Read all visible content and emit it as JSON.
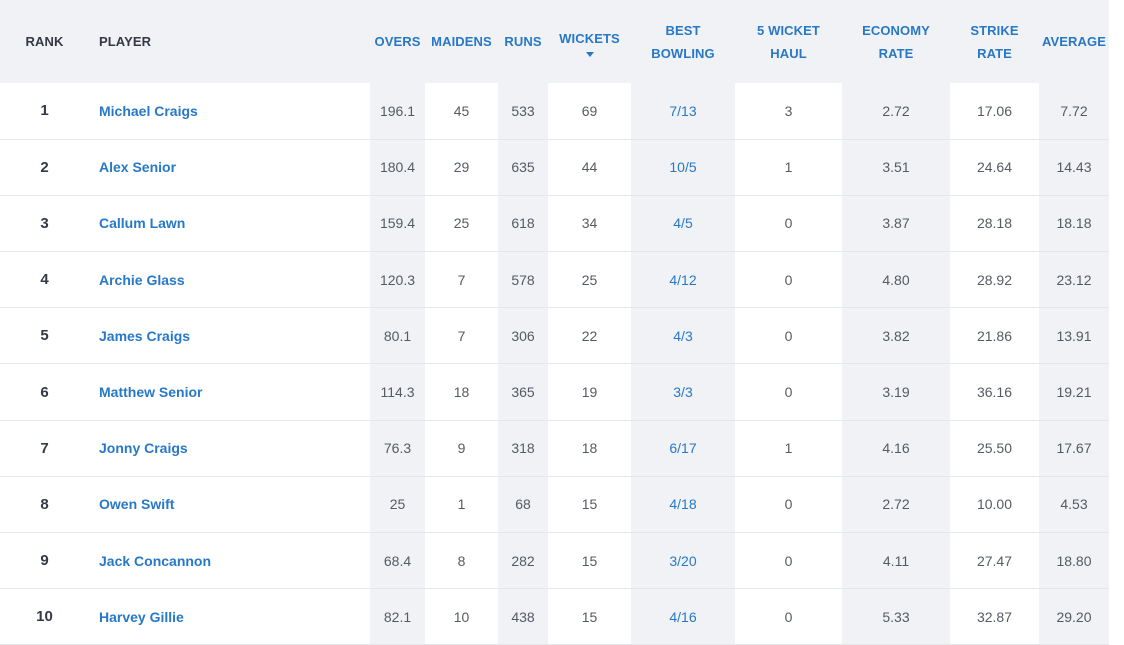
{
  "table": {
    "headers": {
      "rank": "RANK",
      "player": "PLAYER",
      "overs": "OVERS",
      "maidens": "MAIDENS",
      "runs": "RUNS",
      "wickets": "WICKETS",
      "best_line1": "BEST",
      "best_line2": "BOWLING",
      "fivew_line1": "5 WICKET",
      "fivew_line2": "HAUL",
      "econ_line1": "ECONOMY",
      "econ_line2": "RATE",
      "strike_line1": "STRIKE",
      "strike_line2": "RATE",
      "average": "AVERAGE"
    },
    "sort_icon": "caret-down-icon",
    "rows": [
      {
        "rank": "1",
        "player": "Michael Craigs",
        "overs": "196.1",
        "maidens": "45",
        "runs": "533",
        "wickets": "69",
        "best": "7/13",
        "fivew": "3",
        "econ": "2.72",
        "strike": "17.06",
        "avg": "7.72"
      },
      {
        "rank": "2",
        "player": "Alex Senior",
        "overs": "180.4",
        "maidens": "29",
        "runs": "635",
        "wickets": "44",
        "best": "10/5",
        "fivew": "1",
        "econ": "3.51",
        "strike": "24.64",
        "avg": "14.43"
      },
      {
        "rank": "3",
        "player": "Callum Lawn",
        "overs": "159.4",
        "maidens": "25",
        "runs": "618",
        "wickets": "34",
        "best": "4/5",
        "fivew": "0",
        "econ": "3.87",
        "strike": "28.18",
        "avg": "18.18"
      },
      {
        "rank": "4",
        "player": "Archie Glass",
        "overs": "120.3",
        "maidens": "7",
        "runs": "578",
        "wickets": "25",
        "best": "4/12",
        "fivew": "0",
        "econ": "4.80",
        "strike": "28.92",
        "avg": "23.12"
      },
      {
        "rank": "5",
        "player": "James Craigs",
        "overs": "80.1",
        "maidens": "7",
        "runs": "306",
        "wickets": "22",
        "best": "4/3",
        "fivew": "0",
        "econ": "3.82",
        "strike": "21.86",
        "avg": "13.91"
      },
      {
        "rank": "6",
        "player": "Matthew Senior",
        "overs": "114.3",
        "maidens": "18",
        "runs": "365",
        "wickets": "19",
        "best": "3/3",
        "fivew": "0",
        "econ": "3.19",
        "strike": "36.16",
        "avg": "19.21"
      },
      {
        "rank": "7",
        "player": "Jonny Craigs",
        "overs": "76.3",
        "maidens": "9",
        "runs": "318",
        "wickets": "18",
        "best": "6/17",
        "fivew": "1",
        "econ": "4.16",
        "strike": "25.50",
        "avg": "17.67"
      },
      {
        "rank": "8",
        "player": "Owen Swift",
        "overs": "25",
        "maidens": "1",
        "runs": "68",
        "wickets": "15",
        "best": "4/18",
        "fivew": "0",
        "econ": "2.72",
        "strike": "10.00",
        "avg": "4.53"
      },
      {
        "rank": "9",
        "player": "Jack Concannon",
        "overs": "68.4",
        "maidens": "8",
        "runs": "282",
        "wickets": "15",
        "best": "3/20",
        "fivew": "0",
        "econ": "4.11",
        "strike": "27.47",
        "avg": "18.80"
      },
      {
        "rank": "10",
        "player": "Harvey Gillie",
        "overs": "82.1",
        "maidens": "10",
        "runs": "438",
        "wickets": "15",
        "best": "4/16",
        "fivew": "0",
        "econ": "5.33",
        "strike": "32.87",
        "avg": "29.20"
      }
    ]
  },
  "colors": {
    "accent": "#2778c7",
    "header_bg": "#f1f2f5",
    "shaded_column": "#f1f2f5",
    "text": "#555b63",
    "dark_text": "#333a44"
  }
}
